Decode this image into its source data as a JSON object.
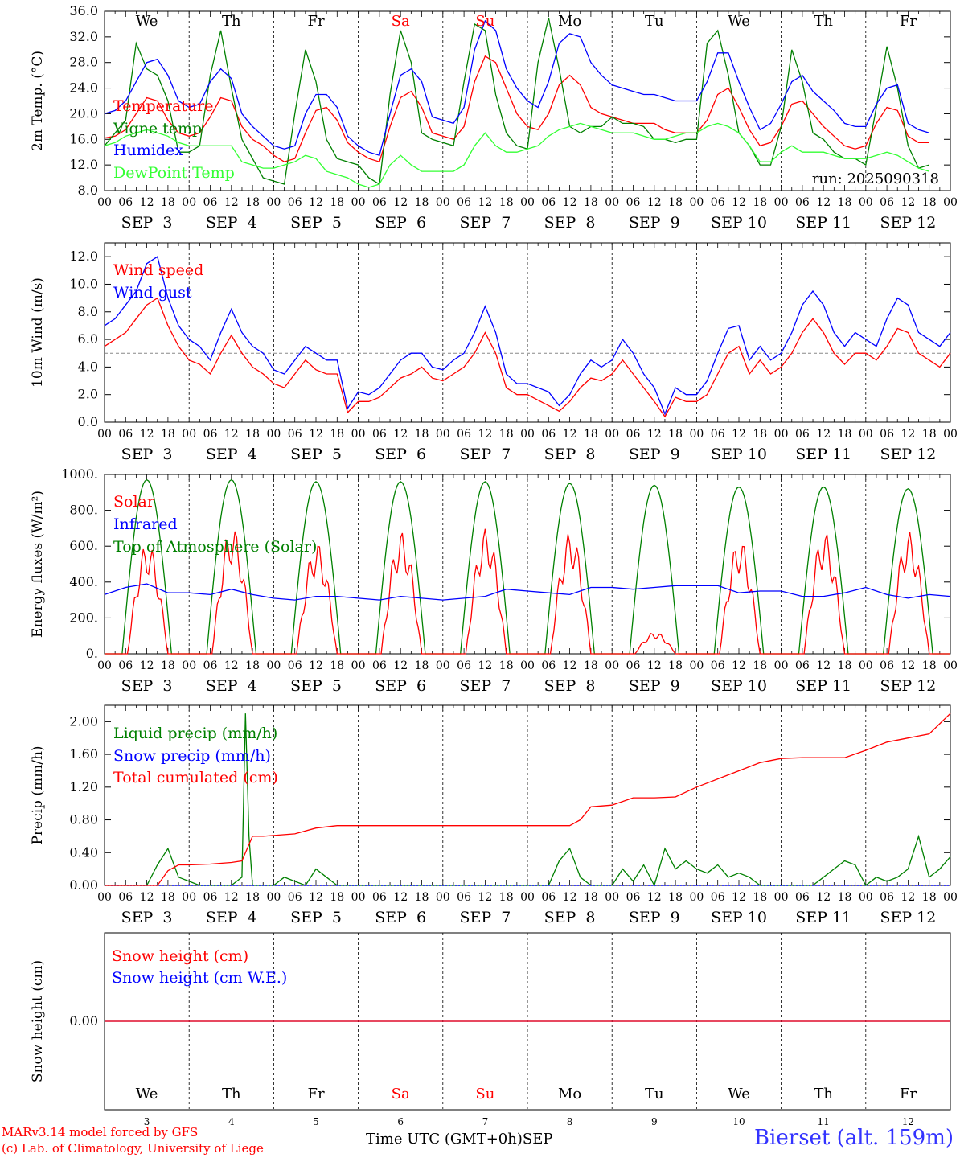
{
  "footer": {
    "model_line": "MARv3.14 model forced by GFS",
    "copyright_line": "(c) Lab. of Climatology, University of Liege",
    "x_axis_label": "Time UTC (GMT+0h)",
    "month": "SEP",
    "station": "Bierset (alt. 159m)"
  },
  "time_axis": {
    "hour_labels": [
      "00",
      "06",
      "12",
      "18"
    ],
    "day_labels": [
      "SEP  3",
      "SEP  4",
      "SEP  5",
      "SEP  6",
      "SEP  7",
      "SEP  8",
      "SEP  9",
      "SEP 10",
      "SEP 11",
      "SEP 12"
    ],
    "weekdays": [
      "We",
      "Th",
      "Fr",
      "Sa",
      "Su",
      "Mo",
      "Tu",
      "We",
      "Th",
      "Fr"
    ],
    "weekday_colors": [
      "#000000",
      "#000000",
      "#000000",
      "#ff0000",
      "#ff0000",
      "#000000",
      "#000000",
      "#000000",
      "#000000",
      "#000000"
    ],
    "day_numbers": [
      "3",
      "4",
      "5",
      "6",
      "7",
      "8",
      "9",
      "10",
      "11",
      "12"
    ]
  },
  "chart_data": [
    {
      "type": "line",
      "ylabel": "2m Temp. (°C)",
      "ylim": [
        8,
        36
      ],
      "yticks": [
        "8.0",
        "12.0",
        "16.0",
        "20.0",
        "24.0",
        "28.0",
        "32.0",
        "36.0"
      ],
      "ytick_values": [
        8,
        12,
        16,
        20,
        24,
        28,
        32,
        36
      ],
      "annotation": "run: 2025090318",
      "x_hours": [
        0,
        3,
        6,
        9,
        12,
        15,
        18,
        21,
        24,
        27,
        30,
        33,
        36,
        39,
        42,
        45,
        48,
        51,
        54,
        57,
        60,
        63,
        66,
        69,
        72,
        75,
        78,
        81,
        84,
        87,
        90,
        93,
        96,
        99,
        102,
        105,
        108,
        111,
        114,
        117,
        120,
        123,
        126,
        129,
        132,
        135,
        138,
        141,
        144,
        147,
        150,
        153,
        156,
        159,
        162,
        165,
        168,
        171,
        174,
        177,
        180,
        183,
        186,
        189,
        192,
        195,
        198,
        201,
        204,
        207,
        210,
        213,
        216,
        219,
        222,
        225,
        228,
        231,
        234,
        237,
        240
      ],
      "series": [
        {
          "name": "Temperature",
          "color": "#ff0000",
          "values": [
            16.2,
            16.5,
            17.5,
            20,
            22.5,
            22,
            19,
            17,
            16.5,
            17,
            19.5,
            22.5,
            22,
            18,
            16,
            15,
            13.5,
            12.5,
            13,
            17,
            20.5,
            21,
            19,
            15.5,
            14,
            13,
            12.5,
            18,
            22.5,
            23.5,
            21,
            17,
            16.5,
            16,
            18,
            25,
            29,
            28,
            24,
            20,
            18,
            17.5,
            20,
            24.5,
            26,
            24.5,
            21,
            20,
            19.5,
            19,
            18.5,
            18.5,
            18.5,
            17.5,
            17,
            17,
            17,
            19,
            23,
            24,
            21,
            17.5,
            15,
            15.5,
            18,
            21.5,
            22,
            20,
            18,
            16.5,
            15,
            14.5,
            15,
            18.5,
            21,
            20.5,
            16.5,
            15.5,
            15.5
          ]
        },
        {
          "name": "Vigne temp",
          "color": "#008000",
          "values": [
            15,
            17,
            19,
            31,
            27,
            26,
            22,
            14,
            14,
            15,
            26,
            33,
            24,
            16,
            13,
            10,
            9.5,
            9,
            20,
            30,
            25,
            16,
            13,
            12.5,
            12,
            10,
            9,
            23,
            33,
            28,
            17,
            16,
            15.5,
            15,
            25,
            34,
            33,
            23,
            17,
            15,
            14.5,
            28,
            35,
            27,
            18,
            17,
            18,
            18,
            19.5,
            18.5,
            18.5,
            18,
            16,
            16,
            15.5,
            16,
            16,
            31,
            33,
            26,
            17,
            15,
            12,
            12,
            18,
            30,
            25,
            17,
            16,
            14,
            13,
            13,
            12,
            21,
            30.5,
            24,
            15,
            11.5,
            12
          ]
        },
        {
          "name": "Humidex",
          "color": "#0000ff",
          "values": [
            20,
            20.5,
            22,
            25,
            28,
            28.5,
            26,
            22,
            21,
            21.5,
            25,
            27,
            25.5,
            20,
            18,
            16.5,
            15,
            14.5,
            15,
            20,
            23,
            23,
            21,
            16.5,
            15,
            14,
            13.5,
            20,
            26,
            27,
            25,
            19.5,
            19,
            18.5,
            21,
            30,
            34.5,
            33,
            27,
            24,
            22,
            21,
            25,
            31,
            32.5,
            32,
            28,
            26,
            24.5,
            24,
            23.5,
            23,
            23,
            22.5,
            22,
            22,
            22,
            25,
            29.5,
            29.5,
            25,
            21,
            17.5,
            18.5,
            21.5,
            25,
            26,
            23.5,
            22,
            20.5,
            18.5,
            18,
            18,
            21.5,
            24,
            24.5,
            18.5,
            17.5,
            17
          ]
        },
        {
          "name": "DewPoint Temp",
          "color": "#33ff33",
          "values": [
            15,
            15.5,
            16.5,
            17,
            17.5,
            17,
            16.5,
            15.5,
            15,
            15,
            15,
            15,
            15,
            12.5,
            12,
            11.5,
            11.5,
            12,
            12.5,
            13.5,
            13,
            11,
            10.5,
            10,
            9,
            8.5,
            9,
            12,
            13.5,
            12,
            11,
            11,
            11,
            11,
            12,
            15,
            17,
            15,
            14,
            14,
            14.5,
            15,
            16.5,
            17.5,
            18,
            18.5,
            18,
            17.5,
            17,
            17,
            17,
            16.5,
            16,
            16,
            16.5,
            17,
            17,
            18,
            18.5,
            18,
            17,
            15,
            12.5,
            12.5,
            14,
            15,
            14,
            14,
            14,
            13.5,
            13,
            13,
            13,
            13.5,
            14,
            13.5,
            12.5,
            11.5,
            11
          ]
        }
      ]
    },
    {
      "type": "line",
      "ylabel": "10m Wind (m/s)",
      "ylim": [
        0,
        13
      ],
      "yticks": [
        "0.0",
        "2.0",
        "4.0",
        "6.0",
        "8.0",
        "10.0",
        "12.0"
      ],
      "ytick_values": [
        0,
        2,
        4,
        6,
        8,
        10,
        12
      ],
      "reference_line": 5,
      "x_hours": [
        0,
        3,
        6,
        9,
        12,
        15,
        18,
        21,
        24,
        27,
        30,
        33,
        36,
        39,
        42,
        45,
        48,
        51,
        54,
        57,
        60,
        63,
        66,
        69,
        72,
        75,
        78,
        81,
        84,
        87,
        90,
        93,
        96,
        99,
        102,
        105,
        108,
        111,
        114,
        117,
        120,
        123,
        126,
        129,
        132,
        135,
        138,
        141,
        144,
        147,
        150,
        153,
        156,
        159,
        162,
        165,
        168,
        171,
        174,
        177,
        180,
        183,
        186,
        189,
        192,
        195,
        198,
        201,
        204,
        207,
        210,
        213,
        216,
        219,
        222,
        225,
        228,
        231,
        234,
        237,
        240
      ],
      "series": [
        {
          "name": "Wind speed",
          "color": "#ff0000",
          "values": [
            5.5,
            6,
            6.5,
            7.5,
            8.5,
            9,
            7,
            5.5,
            4.5,
            4.2,
            3.5,
            5,
            6.3,
            5,
            4,
            3.5,
            2.8,
            2.5,
            3.5,
            4.5,
            3.8,
            3.5,
            3.5,
            0.7,
            1.5,
            1.5,
            1.8,
            2.5,
            3.2,
            3.5,
            4,
            3.2,
            3,
            3.5,
            4,
            5,
            6.5,
            5,
            2.5,
            2,
            2,
            1.6,
            1.2,
            0.8,
            1.5,
            2.5,
            3.2,
            3,
            3.5,
            4.5,
            3.5,
            2.5,
            1.5,
            0.4,
            1.8,
            1.5,
            1.5,
            2,
            3.5,
            5,
            5.5,
            3.5,
            4.5,
            3.5,
            4,
            5,
            6.5,
            7.5,
            6.5,
            5,
            4.2,
            5,
            5,
            4.5,
            5.5,
            6.8,
            6.5,
            5,
            4.5,
            4,
            5
          ]
        },
        {
          "name": "Wind gust",
          "color": "#0000ff",
          "values": [
            7,
            7.5,
            8.5,
            9.5,
            11.5,
            12,
            9,
            7,
            6,
            5.5,
            4.5,
            6.5,
            8.2,
            6.5,
            5.5,
            5,
            3.8,
            3.5,
            4.5,
            5.5,
            5,
            4.5,
            4.5,
            1,
            2.2,
            2,
            2.5,
            3.5,
            4.5,
            5,
            5,
            4,
            3.8,
            4.5,
            5,
            6.5,
            8.4,
            6.5,
            3.5,
            2.8,
            2.8,
            2.5,
            2.2,
            1.2,
            2,
            3.5,
            4.5,
            4,
            4.5,
            6,
            5,
            3.5,
            2.5,
            0.6,
            2.5,
            2,
            2,
            3,
            5,
            6.8,
            7,
            4.5,
            5.5,
            4.5,
            5,
            6.5,
            8.5,
            9.5,
            8.5,
            6.5,
            5.5,
            6.5,
            6,
            5.5,
            7.5,
            9,
            8.5,
            6.5,
            6,
            5.5,
            6.5
          ]
        }
      ]
    },
    {
      "type": "line",
      "ylabel": "Energy fluxes (W/m²)",
      "ylim": [
        0,
        1000
      ],
      "yticks": [
        "0.",
        "200.",
        "400.",
        "600.",
        "800.",
        "1000."
      ],
      "ytick_values": [
        0,
        200,
        400,
        600,
        800,
        1000
      ],
      "series": [
        {
          "name": "Solar",
          "color": "#ff0000",
          "daily_peaks": [
            620,
            710,
            620,
            680,
            700,
            680,
            120,
            640,
            680,
            680
          ],
          "note": "peaks of irregular Solar curve per day"
        },
        {
          "name": "Infrared",
          "color": "#0000ff",
          "x_hours": [
            0,
            6,
            12,
            18,
            24,
            30,
            36,
            42,
            48,
            54,
            60,
            66,
            72,
            78,
            84,
            90,
            96,
            102,
            108,
            114,
            120,
            126,
            132,
            138,
            144,
            150,
            156,
            162,
            168,
            174,
            180,
            186,
            192,
            198,
            204,
            210,
            216,
            222,
            228,
            234,
            240
          ],
          "values": [
            330,
            370,
            390,
            340,
            340,
            330,
            360,
            330,
            310,
            300,
            320,
            320,
            310,
            300,
            320,
            310,
            300,
            310,
            320,
            360,
            350,
            340,
            330,
            370,
            370,
            360,
            370,
            380,
            380,
            380,
            340,
            350,
            350,
            320,
            320,
            340,
            370,
            330,
            310,
            330,
            320
          ]
        },
        {
          "name": "Top of Atmosphere (Solar)",
          "color": "#008000",
          "daily_peaks": [
            970,
            970,
            960,
            960,
            960,
            950,
            940,
            930,
            930,
            920
          ]
        }
      ]
    },
    {
      "type": "line",
      "ylabel": "Precip (mm/h)",
      "ylim": [
        0,
        2.2
      ],
      "yticks": [
        "0.00",
        "0.40",
        "0.80",
        "1.20",
        "1.60",
        "2.00"
      ],
      "ytick_values": [
        0,
        0.4,
        0.8,
        1.2,
        1.6,
        2.0
      ],
      "series": [
        {
          "name": "Liquid precip (mm/h)",
          "color": "#008000",
          "x_hours": [
            0,
            3,
            6,
            9,
            12,
            15,
            18,
            21,
            24,
            27,
            30,
            33,
            36,
            39,
            40,
            41,
            42,
            45,
            48,
            51,
            54,
            57,
            60,
            63,
            66,
            69,
            72,
            84,
            108,
            120,
            126,
            129,
            132,
            135,
            138,
            141,
            144,
            147,
            150,
            153,
            156,
            159,
            162,
            165,
            168,
            171,
            174,
            177,
            180,
            183,
            186,
            189,
            192,
            195,
            198,
            201,
            204,
            207,
            210,
            213,
            216,
            219,
            222,
            225,
            228,
            231,
            234,
            237,
            240
          ],
          "values": [
            0,
            0,
            0,
            0,
            0,
            0.25,
            0.45,
            0.1,
            0.05,
            0,
            0,
            0,
            0,
            0.1,
            2.1,
            0.6,
            0,
            0,
            0,
            0.1,
            0.05,
            0,
            0.2,
            0.1,
            0,
            0,
            0,
            0,
            0,
            0,
            0,
            0.3,
            0.45,
            0.1,
            0,
            0,
            0,
            0.2,
            0.05,
            0.25,
            0,
            0.45,
            0.2,
            0.3,
            0.2,
            0.15,
            0.25,
            0.1,
            0.15,
            0.1,
            0,
            0,
            0,
            0,
            0,
            0,
            0.1,
            0.2,
            0.3,
            0.25,
            0,
            0.1,
            0.05,
            0.1,
            0.2,
            0.6,
            0.1,
            0.2,
            0.35
          ]
        },
        {
          "name": "Snow precip (mm/h)",
          "color": "#0000ff",
          "values_constant": 0
        },
        {
          "name": "Total cumulated (cm)",
          "color": "#ff0000",
          "x_hours": [
            0,
            12,
            15,
            18,
            21,
            24,
            30,
            36,
            39,
            42,
            45,
            48,
            54,
            60,
            66,
            72,
            96,
            120,
            132,
            135,
            138,
            144,
            150,
            156,
            162,
            168,
            174,
            180,
            186,
            192,
            198,
            204,
            210,
            216,
            222,
            228,
            234,
            240
          ],
          "values": [
            0,
            0,
            0,
            0.18,
            0.25,
            0.25,
            0.26,
            0.28,
            0.3,
            0.6,
            0.6,
            0.61,
            0.63,
            0.7,
            0.73,
            0.73,
            0.73,
            0.73,
            0.73,
            0.8,
            0.96,
            0.98,
            1.07,
            1.07,
            1.08,
            1.2,
            1.3,
            1.4,
            1.5,
            1.55,
            1.56,
            1.56,
            1.56,
            1.65,
            1.75,
            1.8,
            1.85,
            2.1
          ]
        }
      ]
    },
    {
      "type": "line",
      "ylabel": "Snow height (cm)",
      "yticks": [
        "0.00"
      ],
      "ytick_values": [
        0
      ],
      "series": [
        {
          "name": "Snow height (cm)",
          "color": "#ff0000",
          "values_constant": 0
        },
        {
          "name": "Snow height (cm W.E.)",
          "color": "#0000ff",
          "values_constant": 0
        }
      ]
    }
  ]
}
